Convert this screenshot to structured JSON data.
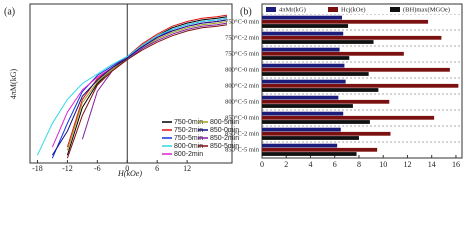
{
  "chart_data": [
    {
      "type": "line",
      "title": "(a)",
      "xlabel": "H(kOe)",
      "ylabel": "4πM(kG)",
      "x": [
        -18,
        -15,
        -12,
        -9,
        -6,
        -3,
        0,
        3,
        6,
        9,
        12,
        15,
        18,
        20
      ],
      "xlim": [
        -19.5,
        21
      ],
      "ylim": [
        0,
        10
      ],
      "xticks": [
        -18,
        -12,
        -6,
        0,
        6,
        12
      ],
      "series": [
        {
          "name": "750-0min",
          "color": "#000000",
          "values": [
            null,
            null,
            0.5,
            3.5,
            5.0,
            5.9,
            6.6,
            7.4,
            8.0,
            8.5,
            8.8,
            9.0,
            9.1,
            9.2
          ]
        },
        {
          "name": "750-2min",
          "color": "#e01010",
          "values": [
            null,
            null,
            1.0,
            4.0,
            5.3,
            6.0,
            6.7,
            7.5,
            8.1,
            8.6,
            8.9,
            9.1,
            9.2,
            9.3
          ]
        },
        {
          "name": "750-5min",
          "color": "#1030e0",
          "values": [
            null,
            0.3,
            2.5,
            4.5,
            5.5,
            6.1,
            6.7,
            7.3,
            7.9,
            8.4,
            8.7,
            8.9,
            9.0,
            9.1
          ]
        },
        {
          "name": "800-0min",
          "color": "#30d8e8",
          "values": [
            0.5,
            2.5,
            4.0,
            5.0,
            5.6,
            6.2,
            6.7,
            7.4,
            8.0,
            8.4,
            8.7,
            8.9,
            9.0,
            9.1
          ]
        },
        {
          "name": "800-2min",
          "color": "#e020d0",
          "values": [
            null,
            1.0,
            3.2,
            4.6,
            5.4,
            6.0,
            6.6,
            7.3,
            7.9,
            8.3,
            8.6,
            8.8,
            8.9,
            9.0
          ]
        },
        {
          "name": "800-5min",
          "color": "#a0a020",
          "values": [
            null,
            null,
            0.8,
            3.8,
            5.1,
            5.9,
            6.5,
            7.2,
            7.8,
            8.2,
            8.5,
            8.7,
            8.8,
            8.9
          ]
        },
        {
          "name": "850-0min",
          "color": "#101080",
          "values": [
            null,
            0.5,
            2.0,
            4.2,
            5.2,
            6.0,
            6.6,
            7.3,
            7.9,
            8.3,
            8.6,
            8.8,
            8.9,
            9.0
          ]
        },
        {
          "name": "850-2min",
          "color": "#8020a0",
          "values": [
            null,
            null,
            null,
            1.5,
            4.5,
            5.8,
            6.5,
            7.2,
            7.7,
            8.1,
            8.4,
            8.6,
            8.7,
            8.8
          ]
        },
        {
          "name": "850-5min",
          "color": "#801010",
          "values": [
            null,
            null,
            0.3,
            3.0,
            4.9,
            5.8,
            6.5,
            7.1,
            7.6,
            8.0,
            8.3,
            8.5,
            8.6,
            8.7
          ]
        }
      ]
    },
    {
      "type": "hbar",
      "title": "(b)",
      "categories": [
        "750°C-0 min",
        "750°C-2 min",
        "750°C-5 min",
        "800°C-0 min",
        "800°C-2 min",
        "800°C-5 min",
        "850°C-0 min",
        "850°C-2 min",
        "850°C-5 min"
      ],
      "xlim": [
        0,
        16.5
      ],
      "xticks": [
        0,
        2,
        4,
        6,
        8,
        10,
        12,
        14,
        16
      ],
      "series": [
        {
          "name": "4πMr(kG)",
          "color": "#1c1c7a",
          "values": [
            6.6,
            6.7,
            6.4,
            6.8,
            6.9,
            6.3,
            6.7,
            6.5,
            6.2
          ]
        },
        {
          "name": "Hcj(kOe)",
          "color": "#7a1010",
          "values": [
            13.7,
            14.8,
            11.7,
            15.5,
            16.2,
            10.5,
            14.2,
            10.6,
            9.5
          ]
        },
        {
          "name": "(BH)max(MGOe)",
          "color": "#111111",
          "values": [
            7.1,
            9.2,
            7.2,
            8.8,
            9.6,
            7.5,
            8.9,
            8.0,
            7.8
          ]
        }
      ]
    }
  ]
}
